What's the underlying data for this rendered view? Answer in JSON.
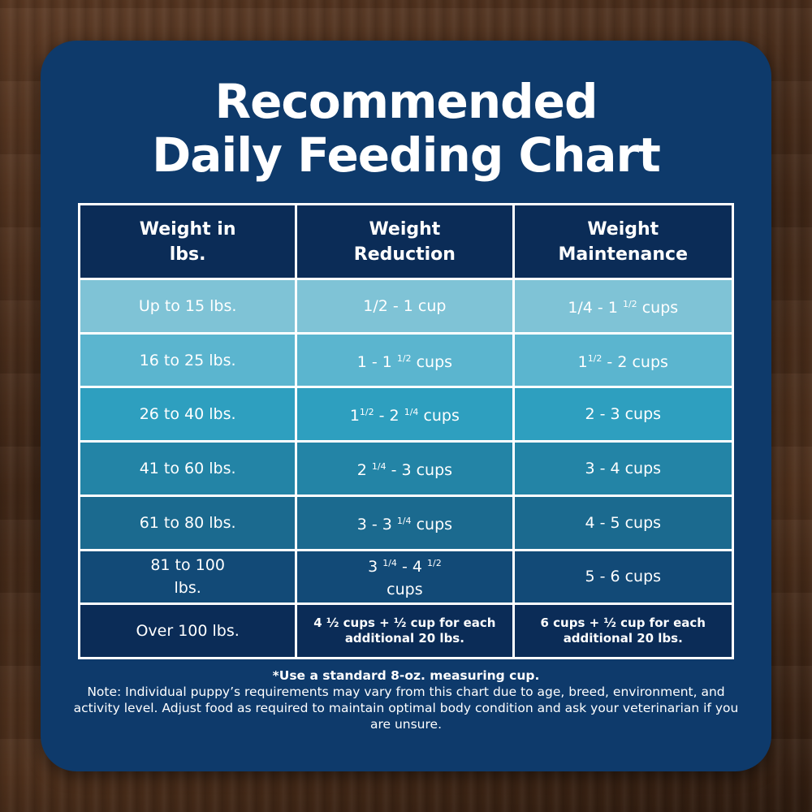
{
  "title": {
    "line1": "Recommended",
    "line2": "Daily Feeding Chart"
  },
  "chart_data": {
    "type": "table",
    "columns": [
      {
        "line1": "Weight in",
        "line2": "lbs."
      },
      {
        "line1": "Weight",
        "line2": "Reduction"
      },
      {
        "line1": "Weight",
        "line2": "Maintenance"
      }
    ],
    "rows": [
      {
        "bg": "#7fc3d6",
        "weight": [
          "Up to 15 lbs."
        ],
        "reduction": {
          "parts": [
            [
              "t",
              "1/2 - 1 cup"
            ]
          ]
        },
        "maintenance": {
          "parts": [
            [
              "t",
              "1/4 - 1 "
            ],
            [
              "s",
              "1/2"
            ],
            [
              "t",
              " cups"
            ]
          ]
        }
      },
      {
        "bg": "#5bb5cf",
        "weight": [
          "16 to 25 lbs."
        ],
        "reduction": {
          "parts": [
            [
              "t",
              "1 - 1 "
            ],
            [
              "s",
              "1/2"
            ],
            [
              "t",
              " cups"
            ]
          ]
        },
        "maintenance": {
          "parts": [
            [
              "t",
              "1"
            ],
            [
              "s",
              "1/2"
            ],
            [
              "t",
              " - 2 cups"
            ]
          ]
        }
      },
      {
        "bg": "#2e9fbf",
        "weight": [
          "26 to 40 lbs."
        ],
        "reduction": {
          "parts": [
            [
              "t",
              "1"
            ],
            [
              "s",
              "1/2"
            ],
            [
              "t",
              " - 2 "
            ],
            [
              "s",
              "1/4"
            ],
            [
              "t",
              " cups"
            ]
          ]
        },
        "maintenance": {
          "parts": [
            [
              "t",
              "2 - 3 cups"
            ]
          ]
        }
      },
      {
        "bg": "#2384a6",
        "weight": [
          "41 to 60 lbs."
        ],
        "reduction": {
          "parts": [
            [
              "t",
              "2 "
            ],
            [
              "s",
              "1/4"
            ],
            [
              "t",
              " - 3 cups"
            ]
          ]
        },
        "maintenance": {
          "parts": [
            [
              "t",
              "3 - 4 cups"
            ]
          ]
        }
      },
      {
        "bg": "#1b6a8f",
        "weight": [
          "61 to 80 lbs."
        ],
        "reduction": {
          "parts": [
            [
              "t",
              "3 - 3 "
            ],
            [
              "s",
              "1/4"
            ],
            [
              "t",
              " cups"
            ]
          ]
        },
        "maintenance": {
          "parts": [
            [
              "t",
              "4 - 5 cups"
            ]
          ]
        }
      },
      {
        "bg": "#124a77",
        "weight": [
          "81 to 100",
          "lbs."
        ],
        "reduction": {
          "parts": [
            [
              "t",
              "3 "
            ],
            [
              "s",
              "1/4"
            ],
            [
              "t",
              " - 4 "
            ],
            [
              "s",
              "1/2"
            ],
            [
              "b",
              ""
            ],
            [
              "t",
              "cups"
            ]
          ]
        },
        "maintenance": {
          "parts": [
            [
              "t",
              "5 - 6 cups"
            ]
          ]
        }
      },
      {
        "bg": "#0b2c57",
        "weight": [
          "Over 100 lbs."
        ],
        "reduction": {
          "small": true,
          "parts": [
            [
              "t",
              "4 ½ cups  + ½ cup for each"
            ],
            [
              "b",
              ""
            ],
            [
              "t",
              "additional 20 lbs."
            ]
          ]
        },
        "maintenance": {
          "small": true,
          "parts": [
            [
              "t",
              "6 cups  + ½ cup for each"
            ],
            [
              "b",
              ""
            ],
            [
              "t",
              "additional 20 lbs."
            ]
          ]
        }
      }
    ]
  },
  "footer": {
    "bold_line": "*Use a standard 8-oz. measuring cup.",
    "note": "Note: Individual puppy’s requirements may vary from this chart due to age, breed, environment, and activity level. Adjust food as required to maintain optimal body condition and ask your veterinarian if you are unsure."
  }
}
